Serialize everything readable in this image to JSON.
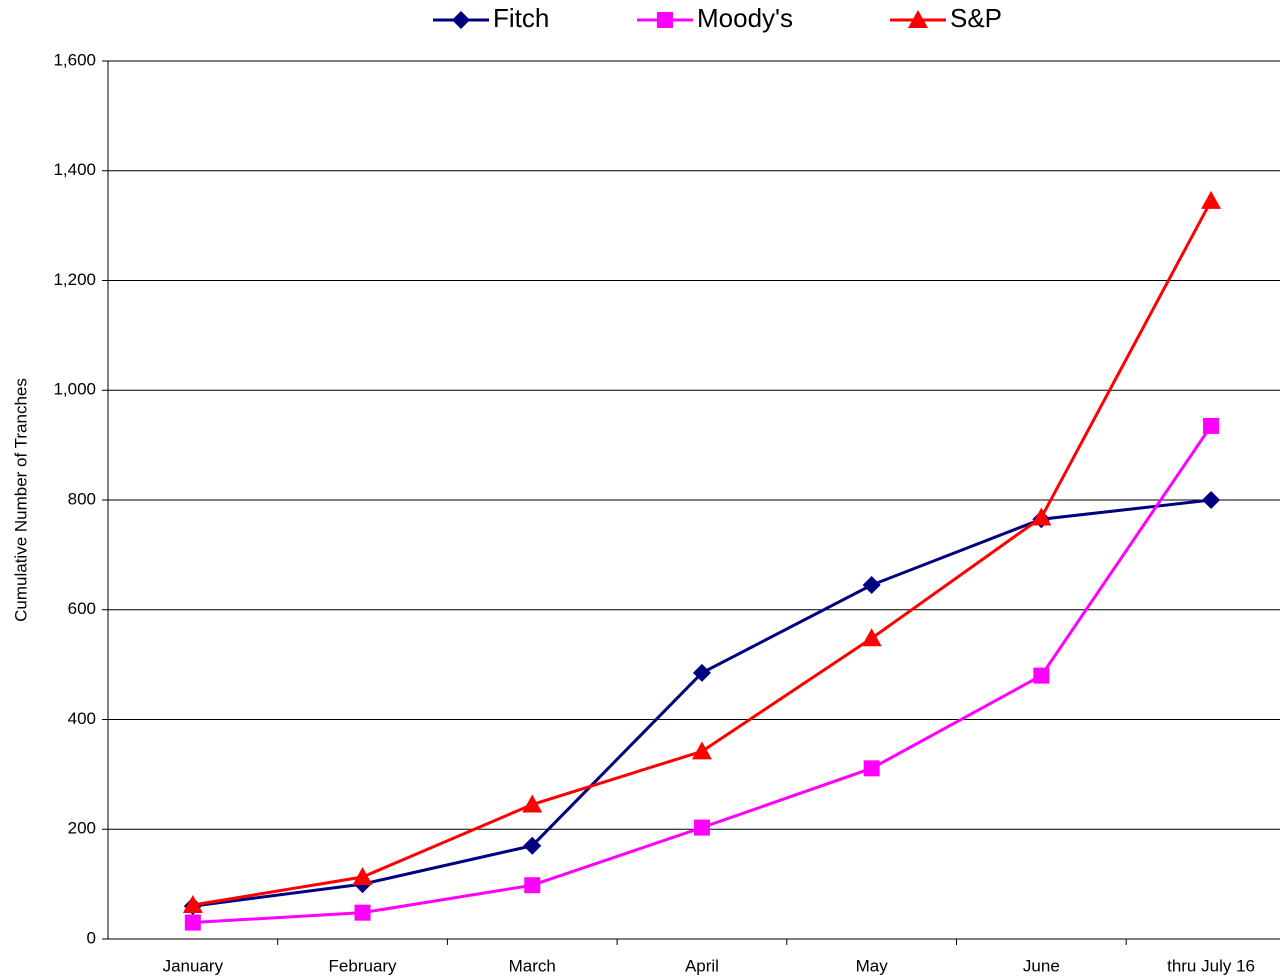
{
  "chart_data": {
    "type": "line",
    "y_label": "Cumulative Number of Tranches",
    "categories": [
      "January",
      "February",
      "March",
      "April",
      "May",
      "June",
      "thru July 16"
    ],
    "series": [
      {
        "name": "Fitch",
        "color": "#000080",
        "marker": "diamond",
        "values": [
          60,
          100,
          170,
          485,
          645,
          765,
          800
        ]
      },
      {
        "name": "Moody's",
        "color": "#ff00ff",
        "marker": "square",
        "values": [
          30,
          48,
          98,
          203,
          311,
          480,
          935
        ]
      },
      {
        "name": "S&P",
        "color": "#ff0000",
        "marker": "triangle",
        "values": [
          62,
          113,
          245,
          342,
          548,
          768,
          1345
        ]
      }
    ],
    "ylim": [
      0,
      1600
    ],
    "yticks": [
      0,
      200,
      400,
      600,
      800,
      {
        "value": 1000,
        "label": "1,000"
      },
      {
        "value": 1200,
        "label": "1,200"
      },
      {
        "value": 1400,
        "label": "1,400"
      },
      {
        "value": 1600,
        "label": "1,600"
      }
    ],
    "grid": true,
    "legend": "top"
  }
}
